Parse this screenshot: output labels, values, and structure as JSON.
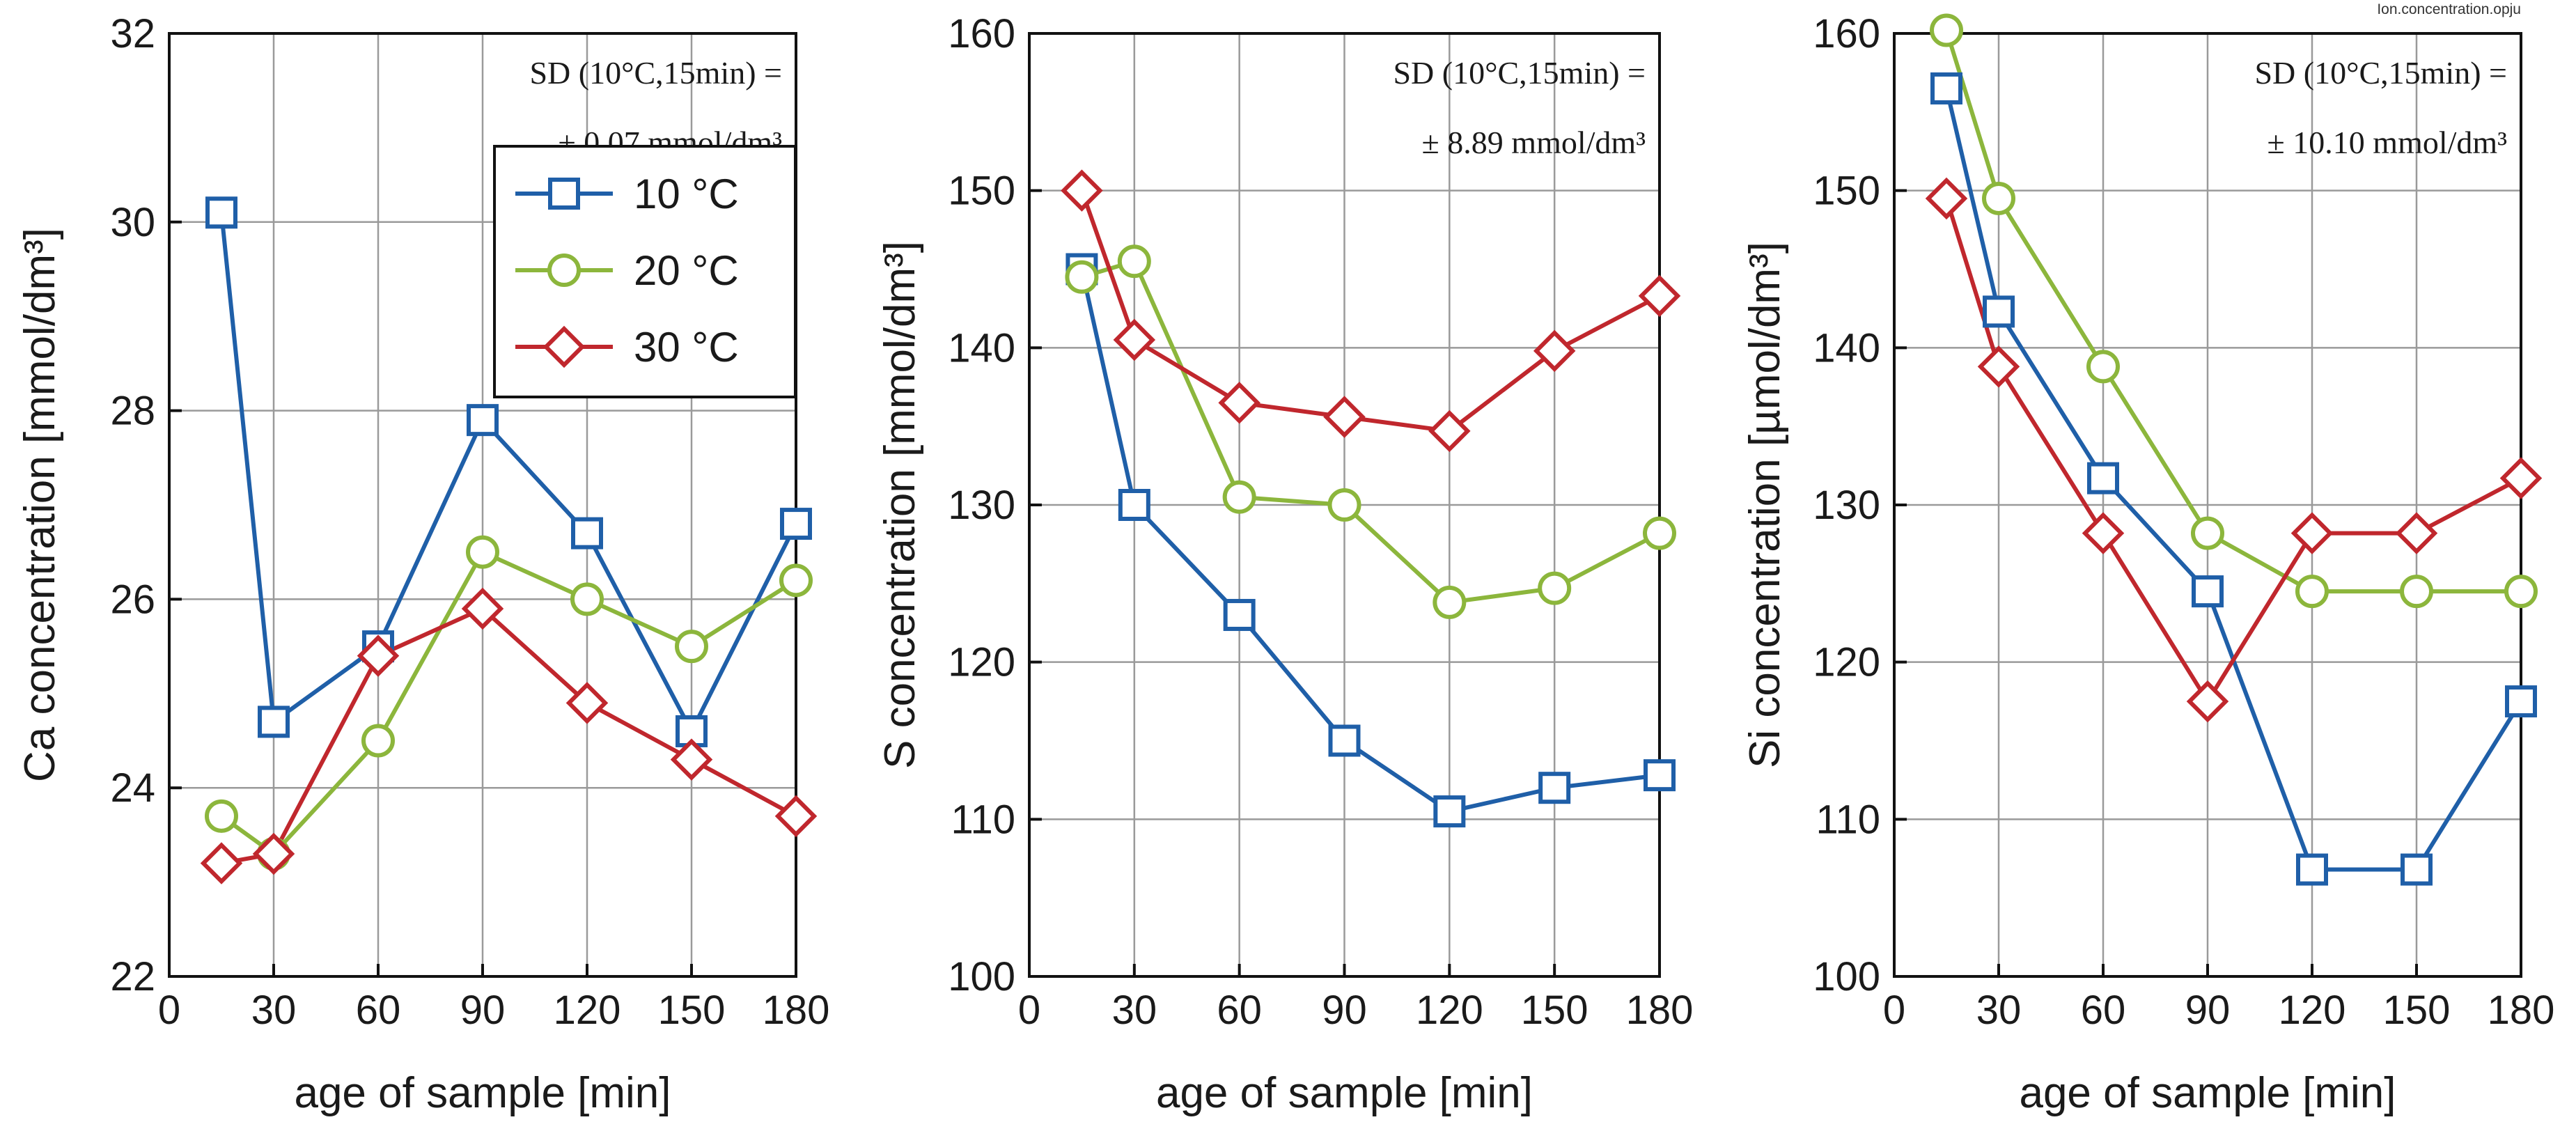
{
  "file_label": "Ion.concentration.opju",
  "colors": {
    "10C": "#1f5fa8",
    "20C": "#8cb63c",
    "30C": "#c0272d",
    "grid": "#9a9a9a",
    "axis": "#111111"
  },
  "legend": {
    "placement": "top-right of first panel",
    "entries": [
      "10 °C",
      "20 °C",
      "30 °C"
    ]
  },
  "chart_data": [
    {
      "type": "line",
      "xlabel": "age of sample [min]",
      "ylabel": "Ca concentration [mmol/dm³]",
      "xlim": [
        0,
        180
      ],
      "ylim": [
        22,
        32
      ],
      "xticks": [
        0,
        30,
        60,
        90,
        120,
        150,
        180
      ],
      "yticks": [
        22,
        24,
        26,
        28,
        30,
        32
      ],
      "annotation": [
        "SD (10°C,15min) =",
        "± 0.07 mmol/dm³"
      ],
      "grid": true,
      "x": [
        15,
        30,
        60,
        90,
        120,
        150,
        180
      ],
      "series": [
        {
          "name": "10 °C",
          "marker": "square",
          "values": [
            30.1,
            24.7,
            25.5,
            27.9,
            26.7,
            24.6,
            26.8
          ]
        },
        {
          "name": "20 °C",
          "marker": "circle",
          "values": [
            23.7,
            23.3,
            24.5,
            26.5,
            26.0,
            25.5,
            26.2
          ]
        },
        {
          "name": "30 °C",
          "marker": "diamond",
          "values": [
            23.2,
            23.3,
            25.4,
            25.9,
            24.9,
            24.3,
            23.7
          ]
        }
      ]
    },
    {
      "type": "line",
      "xlabel": "age of sample [min]",
      "ylabel": "S concentration [mmol/dm³]",
      "xlim": [
        0,
        180
      ],
      "ylim": [
        100,
        160
      ],
      "xticks": [
        0,
        30,
        60,
        90,
        120,
        150,
        180
      ],
      "yticks": [
        100,
        110,
        120,
        130,
        140,
        150,
        160
      ],
      "annotation": [
        "SD (10°C,15min) =",
        "± 8.89 mmol/dm³"
      ],
      "grid": true,
      "x": [
        15,
        30,
        60,
        90,
        120,
        150,
        180
      ],
      "series": [
        {
          "name": "10 °C",
          "marker": "square",
          "values": [
            145.0,
            130.0,
            123.0,
            115.0,
            110.5,
            112.0,
            112.8
          ]
        },
        {
          "name": "20 °C",
          "marker": "circle",
          "values": [
            144.5,
            145.5,
            130.5,
            130.0,
            123.8,
            124.7,
            128.2
          ]
        },
        {
          "name": "30 °C",
          "marker": "diamond",
          "values": [
            150.0,
            140.5,
            136.5,
            135.6,
            134.7,
            139.8,
            143.3
          ]
        }
      ]
    },
    {
      "type": "line",
      "xlabel": "age of sample [min]",
      "ylabel": "Si concentration [µmol/dm³]",
      "xlim": [
        0,
        180
      ],
      "ylim": [
        100,
        160
      ],
      "xticks": [
        0,
        30,
        60,
        90,
        120,
        150,
        180
      ],
      "yticks": [
        100,
        110,
        120,
        130,
        140,
        150,
        160
      ],
      "annotation": [
        "SD (10°C,15min) =",
        "± 10.10 mmol/dm³"
      ],
      "grid": true,
      "x": [
        15,
        30,
        60,
        90,
        120,
        150,
        180
      ],
      "series": [
        {
          "name": "10 °C",
          "marker": "square",
          "values": [
            156.5,
            142.3,
            131.7,
            124.5,
            106.8,
            106.8,
            117.5
          ]
        },
        {
          "name": "20 °C",
          "marker": "circle",
          "values": [
            160.2,
            149.5,
            138.8,
            128.2,
            124.5,
            124.5,
            124.5
          ]
        },
        {
          "name": "30 °C",
          "marker": "diamond",
          "values": [
            149.5,
            138.8,
            128.2,
            117.5,
            128.2,
            128.2,
            131.7
          ]
        }
      ]
    }
  ]
}
